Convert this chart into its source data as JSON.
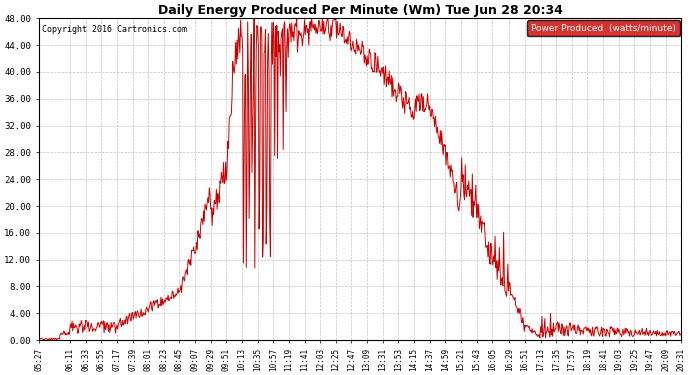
{
  "title": "Daily Energy Produced Per Minute (Wm) Tue Jun 28 20:34",
  "copyright": "Copyright 2016 Cartronics.com",
  "legend_label": "Power Produced  (watts/minute)",
  "legend_bg": "#cc0000",
  "legend_text_color": "#ffffff",
  "line_color": "#cc0000",
  "bg_color": "#ffffff",
  "grid_color": "#999999",
  "ylim": [
    0,
    48
  ],
  "yticks": [
    0.0,
    4.0,
    8.0,
    12.0,
    16.0,
    20.0,
    24.0,
    28.0,
    32.0,
    36.0,
    40.0,
    44.0,
    48.0
  ],
  "ytick_labels": [
    "0.00",
    "4.00",
    "8.00",
    "12.00",
    "16.00",
    "20.00",
    "24.00",
    "28.00",
    "32.00",
    "36.00",
    "40.00",
    "44.00",
    "48.00"
  ],
  "x_labels": [
    "05:27",
    "06:11",
    "06:33",
    "06:55",
    "07:17",
    "07:39",
    "08:01",
    "08:23",
    "08:45",
    "09:07",
    "09:29",
    "09:51",
    "10:13",
    "10:35",
    "10:57",
    "11:19",
    "11:41",
    "12:03",
    "12:25",
    "12:47",
    "13:09",
    "13:31",
    "13:53",
    "14:15",
    "14:37",
    "14:59",
    "15:21",
    "15:43",
    "16:05",
    "16:29",
    "16:51",
    "17:13",
    "17:35",
    "17:57",
    "18:19",
    "18:41",
    "19:03",
    "19:25",
    "19:47",
    "20:09",
    "20:31"
  ]
}
